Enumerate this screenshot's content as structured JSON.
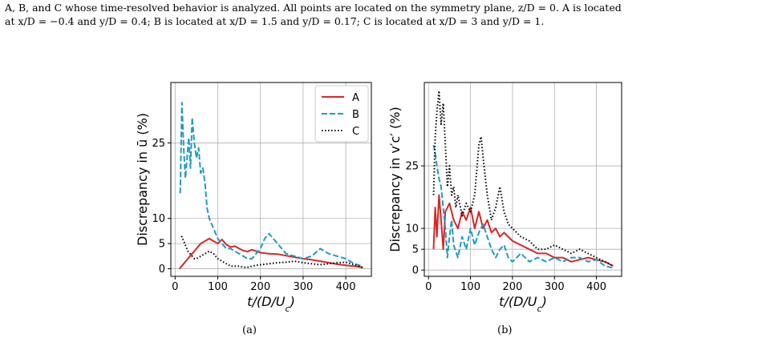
{
  "caption": {
    "line1": "A, B, and C whose time-resolved behavior is analyzed. All points are located on the symmetry plane, z/D = 0. A is located",
    "line2": "at x/D = −0.4 and y/D = 0.4; B is located at x/D = 1.5 and y/D = 0.17; C is located at x/D = 3 and y/D = 1."
  },
  "colors": {
    "A": "#d62728",
    "B": "#1f9bc2",
    "C": "#000000"
  },
  "chart_data": [
    {
      "type": "line",
      "panel_label": "(a)",
      "xlabel": "t/(D/U_c)",
      "ylabel": "Discrepancy in ū (%)",
      "xlim": [
        -10,
        460
      ],
      "ylim": [
        -1.5,
        37
      ],
      "xticks": [
        0,
        100,
        200,
        300,
        400
      ],
      "yticks": [
        0,
        5,
        10,
        25
      ],
      "grid": true,
      "legend": "top-right",
      "series": [
        {
          "name": "A",
          "style": "solid",
          "x": [
            10,
            20,
            30,
            40,
            50,
            60,
            70,
            80,
            90,
            100,
            110,
            120,
            130,
            140,
            150,
            160,
            170,
            180,
            190,
            200,
            220,
            240,
            260,
            280,
            300,
            320,
            340,
            360,
            380,
            400,
            420,
            440
          ],
          "y": [
            0,
            1,
            2,
            3,
            4,
            5,
            5.5,
            6,
            5.5,
            5,
            5.8,
            4.8,
            4.3,
            4.5,
            4.0,
            3.6,
            3.4,
            3.8,
            3.5,
            3.2,
            3.0,
            2.9,
            2.6,
            2.3,
            2.0,
            1.8,
            1.5,
            1.2,
            0.9,
            0.7,
            0.5,
            0.3
          ]
        },
        {
          "name": "B",
          "style": "dashed",
          "x": [
            12,
            16,
            20,
            24,
            28,
            32,
            36,
            40,
            45,
            50,
            55,
            60,
            65,
            70,
            75,
            80,
            90,
            100,
            110,
            120,
            130,
            140,
            150,
            160,
            170,
            180,
            190,
            200,
            210,
            220,
            230,
            240,
            250,
            260,
            280,
            300,
            320,
            340,
            360,
            380,
            400,
            420,
            440
          ],
          "y": [
            15,
            33,
            24,
            18,
            22,
            26,
            20,
            30,
            25,
            22,
            24,
            19,
            20,
            17,
            12,
            10,
            8,
            6,
            5,
            4,
            4,
            3.5,
            3,
            2.5,
            2,
            2,
            3,
            4,
            6,
            7,
            6,
            5,
            4,
            3,
            2.5,
            2,
            2.5,
            4,
            3,
            2.5,
            2,
            1,
            0.5
          ]
        },
        {
          "name": "C",
          "style": "dotted",
          "x": [
            15,
            20,
            25,
            30,
            35,
            40,
            45,
            50,
            60,
            70,
            80,
            90,
            100,
            110,
            120,
            130,
            140,
            150,
            160,
            170,
            180,
            190,
            200,
            220,
            240,
            260,
            280,
            300,
            320,
            340,
            360,
            380,
            400,
            420,
            440
          ],
          "y": [
            6.5,
            5.5,
            4.5,
            3.5,
            3,
            2.5,
            2,
            2,
            2.5,
            3,
            3.5,
            3,
            2,
            1.5,
            1,
            0.5,
            0.5,
            0.5,
            0.3,
            0.3,
            0.5,
            0.7,
            0.8,
            1,
            1.2,
            1.3,
            1.5,
            1.2,
            1,
            0.8,
            1,
            1.2,
            1.3,
            0.8,
            0.2
          ]
        }
      ]
    },
    {
      "type": "line",
      "panel_label": "(b)",
      "xlabel": "t/(D/U_c)",
      "ylabel": "Discrepancy in v′c′ (%)",
      "xlim": [
        -10,
        460
      ],
      "ylim": [
        -1.5,
        45
      ],
      "xticks": [
        0,
        100,
        200,
        300,
        400
      ],
      "yticks": [
        0,
        5,
        10,
        25
      ],
      "grid": true,
      "series": [
        {
          "name": "A",
          "style": "solid",
          "x": [
            12,
            16,
            20,
            25,
            30,
            35,
            40,
            50,
            60,
            70,
            80,
            90,
            100,
            110,
            120,
            130,
            140,
            150,
            160,
            170,
            180,
            190,
            200,
            220,
            240,
            260,
            280,
            300,
            320,
            340,
            360,
            380,
            400,
            420,
            440
          ],
          "y": [
            5,
            15,
            8,
            18,
            12,
            5,
            14,
            16,
            12,
            10,
            14,
            12,
            15,
            10,
            14,
            10,
            12,
            9,
            10,
            8,
            9,
            8,
            7,
            6,
            5,
            4,
            4,
            3,
            3,
            2,
            2.5,
            3,
            2.5,
            2,
            1
          ]
        },
        {
          "name": "B",
          "style": "dashed",
          "x": [
            12,
            16,
            20,
            25,
            30,
            35,
            40,
            45,
            50,
            55,
            60,
            70,
            80,
            90,
            100,
            110,
            120,
            130,
            140,
            150,
            160,
            170,
            180,
            190,
            200,
            220,
            240,
            260,
            280,
            300,
            320,
            340,
            360,
            380,
            400,
            420,
            440
          ],
          "y": [
            30,
            28,
            25,
            22,
            20,
            15,
            10,
            3,
            8,
            12,
            6,
            3,
            8,
            5,
            10,
            6,
            9,
            11,
            8,
            5,
            3,
            5,
            6,
            3,
            2,
            4,
            2,
            3,
            2,
            3,
            2,
            3,
            3,
            2,
            2.5,
            1,
            0.5
          ]
        },
        {
          "name": "C",
          "style": "dotted",
          "x": [
            12,
            16,
            20,
            25,
            30,
            35,
            40,
            45,
            50,
            55,
            60,
            65,
            70,
            80,
            90,
            100,
            110,
            120,
            125,
            130,
            140,
            150,
            160,
            170,
            180,
            190,
            200,
            220,
            240,
            260,
            280,
            300,
            320,
            340,
            360,
            380,
            400,
            420,
            440
          ],
          "y": [
            18,
            32,
            38,
            43,
            35,
            40,
            30,
            20,
            25,
            18,
            20,
            15,
            18,
            13,
            16,
            14,
            18,
            30,
            32,
            27,
            18,
            12,
            15,
            20,
            14,
            11,
            10,
            8,
            7,
            5,
            5,
            6,
            5,
            4,
            5,
            4,
            3,
            2,
            1
          ]
        }
      ]
    }
  ]
}
